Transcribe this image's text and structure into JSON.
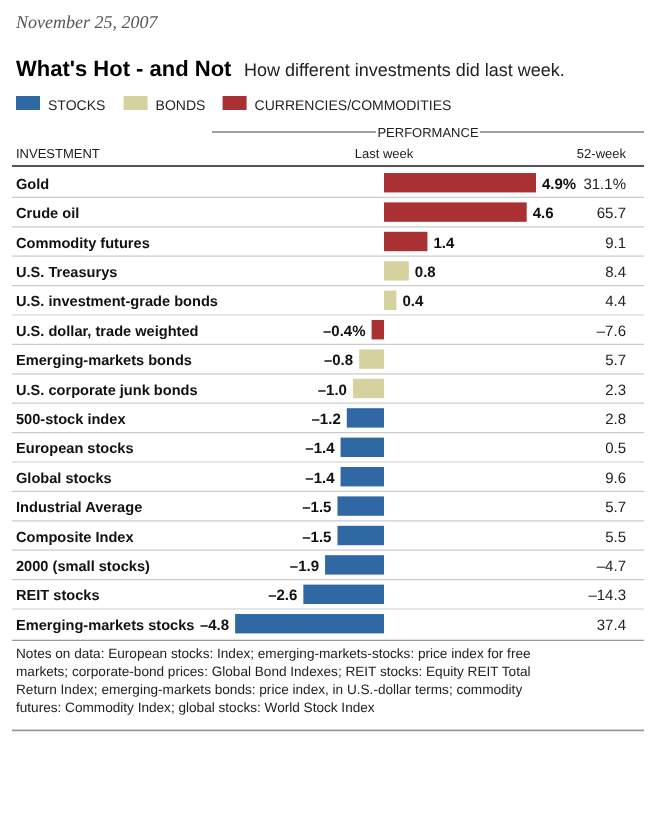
{
  "chart_data": {
    "type": "bar",
    "orientation": "horizontal",
    "stacked": true,
    "title": "What's Hot - and Not",
    "subtitle": "How different investments did last week.",
    "xlabel": "Last week",
    "ylabel": "INVESTMENT",
    "legend": "top left",
    "categories": [
      "Gold",
      "Crude oil",
      "Commodity futures",
      "U.S. Treasurys",
      "U.S. investment-grade bonds",
      "U.S. dollar, trade weighted",
      "Emerging-markets bonds",
      "U.S. corporate junk bonds",
      "500-stock index",
      "European stocks",
      "Global stocks",
      "Industrial Average",
      "Composite Index",
      "2000 (small stocks)",
      "REIT stocks",
      "Emerging-markets stocks"
    ],
    "series": [
      {
        "name": "STOCKS",
        "color": "#2f68a3",
        "values": [
          null,
          null,
          null,
          null,
          null,
          null,
          null,
          null,
          -1.2,
          -1.4,
          -1.4,
          -1.5,
          -1.5,
          -1.9,
          -2.6,
          -4.8
        ],
        "value_labels": [
          null,
          null,
          null,
          null,
          null,
          null,
          null,
          null,
          "–1.2",
          "–1.4",
          "–1.4",
          "–1.5",
          "–1.5",
          "–1.9",
          "–2.6",
          "–4.8"
        ]
      },
      {
        "name": "BONDS",
        "color": "#d6d2a0",
        "values": [
          null,
          null,
          null,
          0.8,
          0.4,
          null,
          -0.8,
          -1.0,
          null,
          null,
          null,
          null,
          null,
          null,
          null,
          null
        ],
        "value_labels": [
          null,
          null,
          null,
          "0.8",
          "0.4",
          null,
          "–0.8",
          "–1.0",
          null,
          null,
          null,
          null,
          null,
          null,
          null,
          null
        ]
      },
      {
        "name": "CURRENCIES/COMMODITIES",
        "color": "#a93033",
        "values": [
          4.9,
          4.6,
          1.4,
          null,
          null,
          -0.4,
          null,
          null,
          null,
          null,
          null,
          null,
          null,
          null,
          null,
          null
        ],
        "value_labels": [
          "4.9%",
          "4.6",
          "1.4",
          null,
          null,
          "–0.4%",
          null,
          null,
          null,
          null,
          null,
          null,
          null,
          null,
          null,
          null
        ]
      }
    ],
    "annotations": [
      "November 25, 2007",
      "PERFORMANCE",
      "52-week",
      "31.1%",
      "65.7",
      "9.1",
      "8.4",
      "4.4",
      "–7.6",
      "5.7",
      "2.3",
      "2.8",
      "0.5",
      "9.6",
      "5.7",
      "5.5",
      "–4.7",
      "–14.3",
      "37.4",
      "Notes on data: European stocks: Index; emerging-markets-stocks: price index for free markets; corporate-bond prices: Global Bond Indexes; REIT stocks: Equity REIT Total Return Index; emerging-markets bonds: price index, in U.S.-dollar terms; commodity futures: Commodity Index; global stocks: World Stock Index"
    ]
  }
}
